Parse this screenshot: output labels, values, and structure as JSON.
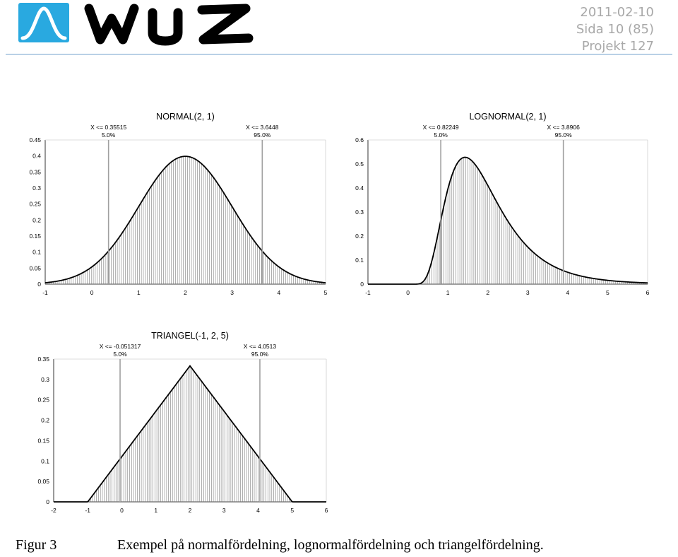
{
  "header": {
    "date": "2011-02-10",
    "page": "Sida 10 (85)",
    "project": "Projekt 127"
  },
  "logo": {
    "text": "wuz",
    "colors": {
      "mark": "#29a9e0",
      "text": "#000000"
    }
  },
  "rule_color": "#b9d1e6",
  "caption": {
    "number": "Figur 3",
    "text": "Exempel på normalfördelning, lognormalfördelning och triangelfördelning."
  },
  "chart_data": [
    {
      "type": "area",
      "title": "NORMAL(2, 1)",
      "distribution": "normal",
      "params": {
        "mean": 2,
        "sd": 1
      },
      "xlim": [
        -1,
        5
      ],
      "ylim": [
        0,
        0.45
      ],
      "x_ticks": [
        "-1",
        "0",
        "1",
        "2",
        "3",
        "4",
        "5"
      ],
      "y_ticks": [
        "0",
        "0.05",
        "0.1",
        "0.15",
        "0.2",
        "0.25",
        "0.3",
        "0.35",
        "0.4",
        "0.45"
      ],
      "percentiles": [
        {
          "value": 0.35515,
          "label": "X <= 0.35515",
          "pct": "5.0%"
        },
        {
          "value": 3.6448,
          "label": "X <= 3.6448",
          "pct": "95.0%"
        }
      ],
      "peak": 0.399
    },
    {
      "type": "area",
      "title": "LOGNORMAL(2, 1)",
      "distribution": "lognormal",
      "params": {
        "mean": 2,
        "sd": 1
      },
      "xlim": [
        -1,
        6
      ],
      "ylim": [
        0,
        0.6
      ],
      "x_ticks": [
        "-1",
        "0",
        "1",
        "2",
        "3",
        "4",
        "5",
        "6"
      ],
      "y_ticks": [
        "0",
        "0.1",
        "0.2",
        "0.3",
        "0.4",
        "0.5",
        "0.6"
      ],
      "percentiles": [
        {
          "value": 0.82249,
          "label": "X <= 0.82249",
          "pct": "5.0%"
        },
        {
          "value": 3.8906,
          "label": "X <= 3.8906",
          "pct": "95.0%"
        }
      ],
      "peak": 0.53
    },
    {
      "type": "area",
      "title": "TRIANGEL(-1, 2, 5)",
      "distribution": "triangular",
      "params": {
        "min": -1,
        "mode": 2,
        "max": 5
      },
      "xlim": [
        -2,
        6
      ],
      "ylim": [
        0,
        0.35
      ],
      "x_ticks": [
        "-2",
        "-1",
        "0",
        "1",
        "2",
        "3",
        "4",
        "5",
        "6"
      ],
      "y_ticks": [
        "0",
        "0.05",
        "0.1",
        "0.15",
        "0.2",
        "0.25",
        "0.3",
        "0.35"
      ],
      "percentiles": [
        {
          "value": -0.051317,
          "label": "X <= -0.051317",
          "pct": "5.0%"
        },
        {
          "value": 4.0513,
          "label": "X <= 4.0513",
          "pct": "95.0%"
        }
      ],
      "peak": 0.3333
    }
  ]
}
